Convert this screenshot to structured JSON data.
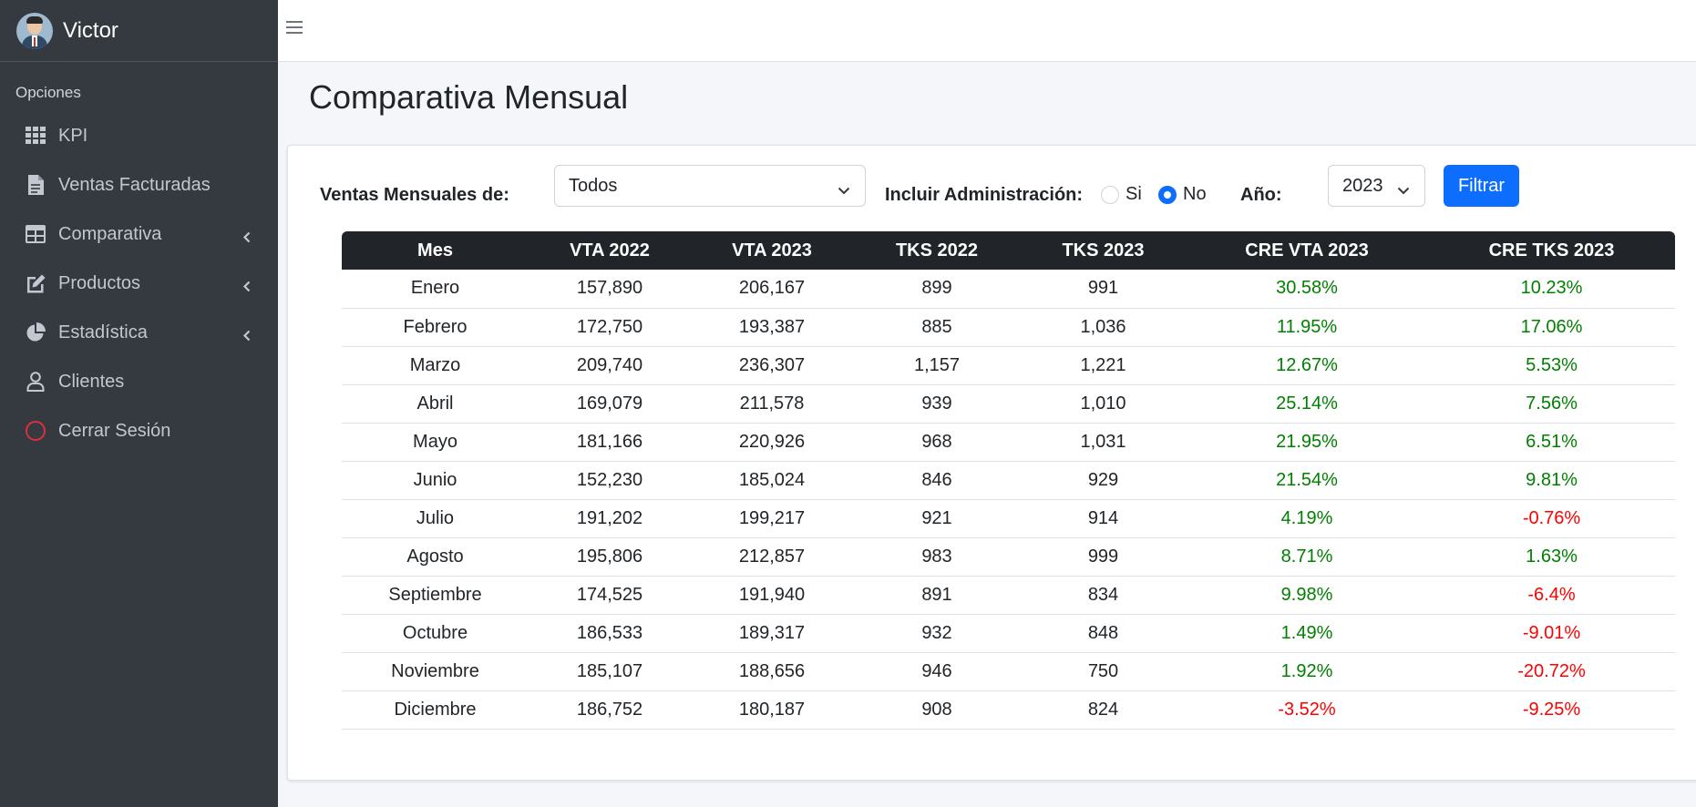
{
  "sidebar": {
    "user_name": "Victor",
    "section_header": "Opciones",
    "items": [
      {
        "label": "KPI",
        "icon": "grid-icon"
      },
      {
        "label": "Ventas Facturadas",
        "icon": "document-icon"
      },
      {
        "label": "Comparativa",
        "icon": "table-icon",
        "has_submenu": true
      },
      {
        "label": "Productos",
        "icon": "edit-icon",
        "has_submenu": true
      },
      {
        "label": "Estadística",
        "icon": "pie-chart-icon",
        "has_submenu": true
      },
      {
        "label": "Clientes",
        "icon": "user-icon"
      },
      {
        "label": "Cerrar Sesión",
        "icon": "circle-icon"
      }
    ]
  },
  "header": {
    "title": "Comparativa Mensual"
  },
  "filters": {
    "ventas_label": "Ventas Mensuales de:",
    "ventas_value": "Todos",
    "admin_label": "Incluir Administración:",
    "admin_options": [
      {
        "label": "Si",
        "checked": false
      },
      {
        "label": "No",
        "checked": true
      }
    ],
    "year_label": "Año:",
    "year_value": "2023",
    "filter_button": "Filtrar"
  },
  "table": {
    "columns": [
      "Mes",
      "VTA 2022",
      "VTA 2023",
      "TKS 2022",
      "TKS 2023",
      "CRE VTA 2023",
      "CRE TKS 2023"
    ],
    "rows": [
      [
        "Enero",
        "157,890",
        "206,167",
        "899",
        "991",
        "30.58%",
        "10.23%"
      ],
      [
        "Febrero",
        "172,750",
        "193,387",
        "885",
        "1,036",
        "11.95%",
        "17.06%"
      ],
      [
        "Marzo",
        "209,740",
        "236,307",
        "1,157",
        "1,221",
        "12.67%",
        "5.53%"
      ],
      [
        "Abril",
        "169,079",
        "211,578",
        "939",
        "1,010",
        "25.14%",
        "7.56%"
      ],
      [
        "Mayo",
        "181,166",
        "220,926",
        "968",
        "1,031",
        "21.95%",
        "6.51%"
      ],
      [
        "Junio",
        "152,230",
        "185,024",
        "846",
        "929",
        "21.54%",
        "9.81%"
      ],
      [
        "Julio",
        "191,202",
        "199,217",
        "921",
        "914",
        "4.19%",
        "-0.76%"
      ],
      [
        "Agosto",
        "195,806",
        "212,857",
        "983",
        "999",
        "8.71%",
        "1.63%"
      ],
      [
        "Septiembre",
        "174,525",
        "191,940",
        "891",
        "834",
        "9.98%",
        "-6.4%"
      ],
      [
        "Octubre",
        "186,533",
        "189,317",
        "932",
        "848",
        "1.49%",
        "-9.01%"
      ],
      [
        "Noviembre",
        "185,107",
        "188,656",
        "946",
        "750",
        "1.92%",
        "-20.72%"
      ],
      [
        "Diciembre",
        "186,752",
        "180,187",
        "908",
        "824",
        "-3.52%",
        "-9.25%"
      ]
    ]
  },
  "colors": {
    "positive": "#008000",
    "negative": "#ff0000",
    "accent": "#0d6efd",
    "sidebar_bg": "#343a40"
  }
}
